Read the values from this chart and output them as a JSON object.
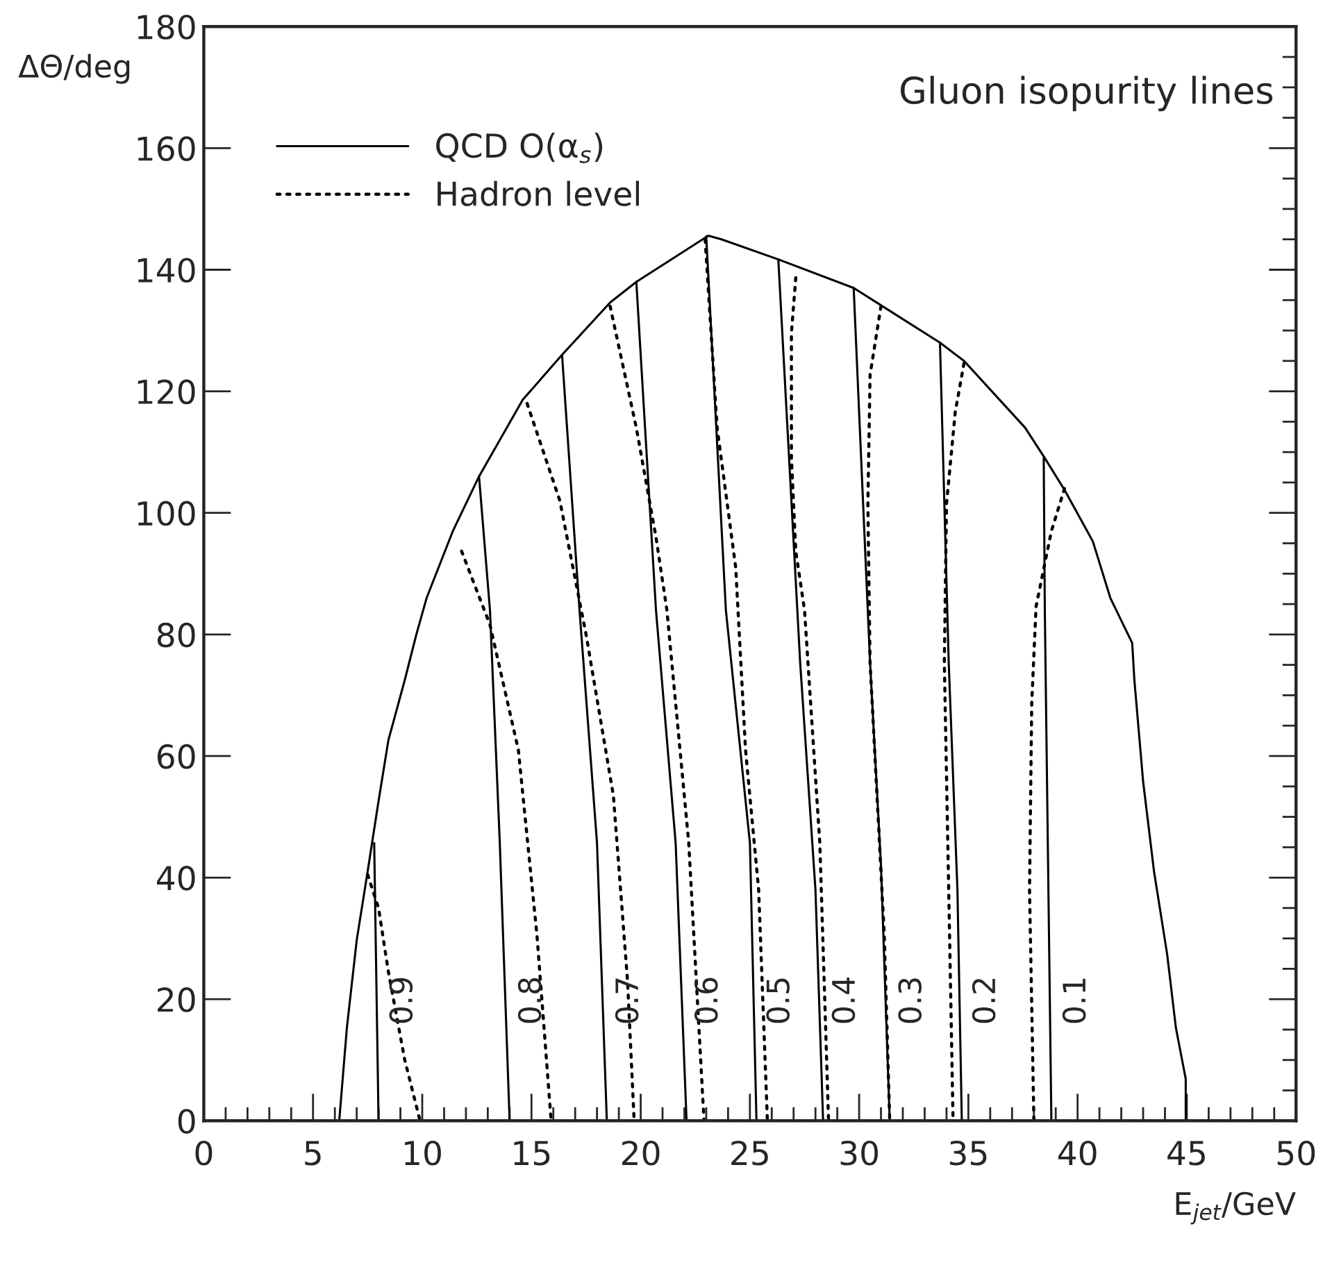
{
  "chart_data": {
    "type": "line",
    "title": "Gluon isopurity lines",
    "xlabel": "E$_{jet}$/GeV",
    "ylabel": "ΔΘ/deg",
    "xlim": [
      0,
      50
    ],
    "xticks": [
      0,
      5,
      10,
      15,
      20,
      25,
      30,
      35,
      40,
      45,
      50
    ],
    "ylim": [
      0,
      180
    ],
    "yticks": [
      0,
      20,
      40,
      60,
      80,
      100,
      120,
      140,
      160,
      180
    ],
    "grid": false,
    "legend": "top left",
    "series": [
      {
        "color": "#000000",
        "line_style": "solid",
        "x": [
          6.2,
          6.55,
          7.0,
          7.5,
          8.0,
          8.45,
          9.2,
          9.73,
          10.2,
          11.4,
          12.6,
          14.6,
          16.4,
          18.6,
          19.8,
          23.1,
          23.7,
          26.3,
          29.75,
          33.7,
          34.8,
          37.6,
          38.5,
          39.4,
          40.7,
          41.5,
          42.5,
          42.6,
          43.0,
          43.5,
          44.1,
          44.5,
          44.95,
          44.95
        ],
        "values": [
          0,
          15.3,
          29.7,
          41,
          52.6,
          62.6,
          72.5,
          80,
          86,
          97,
          106,
          118.6,
          126,
          134.6,
          138,
          145.6,
          145,
          141.7,
          137,
          128,
          125,
          114,
          109,
          103.8,
          95.3,
          86,
          78.6,
          72.5,
          55.8,
          41,
          27.4,
          15.3,
          6.9,
          0
        ]
      },
      {
        "name": "QCD O(α$_{s}$)",
        "color": "#000000",
        "line_style": "solid",
        "x": [
          7.8,
          8.0
        ],
        "values": [
          45.7,
          0
        ]
      },
      {
        "color": "#000000",
        "line_style": "solid",
        "x": [
          12.6,
          13.1,
          13.55,
          14.0
        ],
        "values": [
          106,
          84,
          45.7,
          0
        ]
      },
      {
        "color": "#000000",
        "line_style": "solid",
        "x": [
          16.4,
          17.2,
          18.0,
          18.45
        ],
        "values": [
          126,
          84,
          45.7,
          0
        ]
      },
      {
        "color": "#000000",
        "line_style": "solid",
        "x": [
          19.8,
          20.7,
          21.6,
          22.1
        ],
        "values": [
          138,
          84,
          45.7,
          0
        ]
      },
      {
        "color": "#000000",
        "line_style": "solid",
        "x": [
          23.0,
          23.9,
          25.0,
          25.3
        ],
        "values": [
          145.5,
          84,
          45.7,
          0
        ]
      },
      {
        "color": "#000000",
        "line_style": "solid",
        "x": [
          26.3,
          27.3,
          28.0,
          28.35
        ],
        "values": [
          141.7,
          75.4,
          38,
          0
        ]
      },
      {
        "color": "#000000",
        "line_style": "solid",
        "x": [
          29.75,
          30.5,
          31.0,
          31.4
        ],
        "values": [
          137,
          75.4,
          42,
          0
        ]
      },
      {
        "color": "#000000",
        "line_style": "solid",
        "x": [
          33.7,
          34.1,
          34.5,
          34.7
        ],
        "values": [
          128,
          75.4,
          38,
          0
        ]
      },
      {
        "color": "#000000",
        "line_style": "solid",
        "x": [
          38.45,
          38.5,
          38.8
        ],
        "values": [
          109,
          84,
          0
        ]
      },
      {
        "name": "Hadron level",
        "color": "#000000",
        "line_style": "dotted",
        "x": [
          7.5,
          8.0,
          8.45,
          9.2,
          9.9
        ],
        "values": [
          40.5,
          35,
          24.5,
          10,
          0
        ]
      },
      {
        "color": "#000000",
        "line_style": "dotted",
        "x": [
          11.8,
          13.1,
          14.4,
          15.25,
          15.9
        ],
        "values": [
          93.7,
          81.6,
          61,
          30.6,
          0
        ]
      },
      {
        "color": "#000000",
        "line_style": "dotted",
        "x": [
          14.8,
          16.3,
          17.5,
          18.75,
          19.4,
          19.7
        ],
        "values": [
          118,
          102,
          80,
          53.5,
          22.9,
          0
        ]
      },
      {
        "color": "#000000",
        "line_style": "dotted",
        "x": [
          18.6,
          19.8,
          20.7,
          21.2,
          22.2,
          22.9
        ],
        "values": [
          134,
          114,
          96,
          84,
          45.7,
          0
        ]
      },
      {
        "color": "#000000",
        "line_style": "dotted",
        "x": [
          22.95,
          23.5,
          24.35,
          24.8,
          25.4,
          25.8
        ],
        "values": [
          145,
          114,
          91,
          61,
          38,
          0
        ]
      },
      {
        "color": "#000000",
        "line_style": "dotted",
        "x": [
          27.1,
          26.9,
          26.9,
          27.1,
          27.5,
          28.2,
          28.6
        ],
        "values": [
          138.7,
          129.6,
          109,
          93.7,
          84,
          45.7,
          0
        ]
      },
      {
        "color": "#000000",
        "line_style": "dotted",
        "x": [
          31.0,
          30.5,
          30.4,
          30.5,
          31.15,
          31.4
        ],
        "values": [
          134,
          122.7,
          101.5,
          75.4,
          30.6,
          0
        ]
      },
      {
        "color": "#000000",
        "line_style": "dotted",
        "x": [
          34.8,
          34.4,
          34.0,
          33.9,
          34.1,
          34.3
        ],
        "values": [
          124.6,
          116.6,
          101.5,
          75.4,
          38,
          0
        ]
      },
      {
        "color": "#000000",
        "line_style": "dotted",
        "x": [
          39.4,
          38.8,
          38.1,
          37.9,
          37.8,
          38.0
        ],
        "values": [
          104,
          97,
          84.6,
          68.6,
          38,
          0
        ]
      }
    ],
    "annotations": [
      "0.9",
      "0.8",
      "0.7",
      "0.6",
      "0.5",
      "0.4",
      "0.3",
      "0.2",
      "0.1"
    ]
  }
}
